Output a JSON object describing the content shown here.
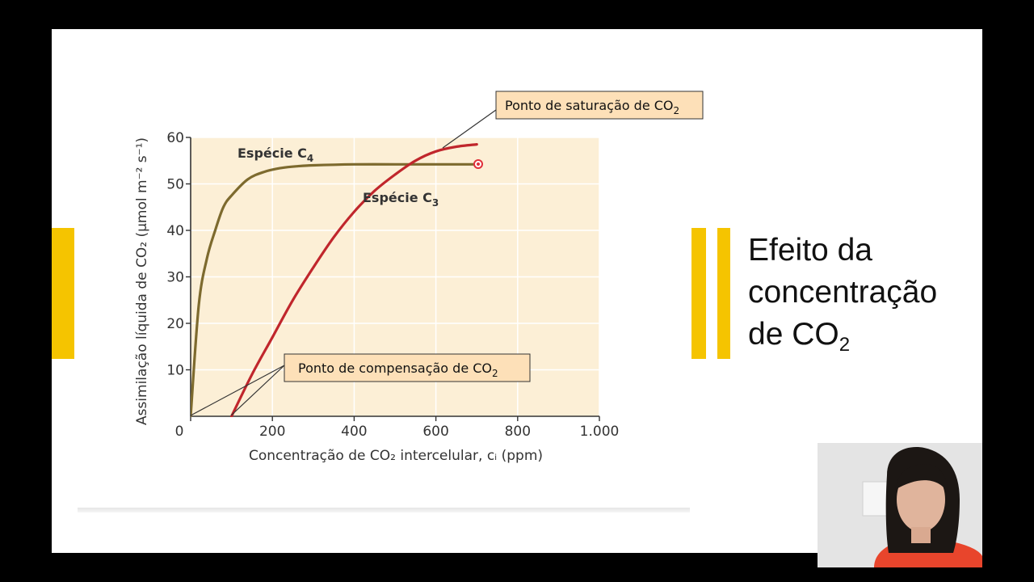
{
  "slide": {
    "title_main": "Efeito da concentração de CO",
    "title_sub": "2"
  },
  "chart_data": {
    "type": "line",
    "xlabel": "Concentração de CO₂ intercelular, cᵢ (ppm)",
    "ylabel": "Assimilação líquida de CO₂ (μmol m⁻² s⁻¹)",
    "xlim": [
      0,
      1000
    ],
    "ylim": [
      0,
      60
    ],
    "x_ticks": [
      0,
      200,
      400,
      600,
      800,
      1000
    ],
    "x_tick_labels": [
      "0",
      "200",
      "400",
      "600",
      "800",
      "1.000"
    ],
    "y_ticks": [
      10,
      20,
      30,
      40,
      50,
      60
    ],
    "y_tick_labels": [
      "10",
      "20",
      "30",
      "40",
      "50",
      "60"
    ],
    "grid": true,
    "series": [
      {
        "name": "Espécie C₄",
        "color": "#7d6a2e",
        "x": [
          0,
          20,
          40,
          60,
          80,
          100,
          140,
          180,
          220,
          260,
          300,
          400,
          500,
          600,
          700
        ],
        "y": [
          0,
          24,
          34,
          40,
          45,
          47.5,
          51,
          52.6,
          53.4,
          53.8,
          54,
          54.2,
          54.2,
          54.2,
          54.2
        ]
      },
      {
        "name": "Espécie C₃",
        "color": "#c0262c",
        "x": [
          100,
          150,
          200,
          250,
          300,
          350,
          400,
          450,
          500,
          550,
          600,
          650,
          700
        ],
        "y": [
          0,
          9,
          17,
          25,
          32,
          38.5,
          44,
          48.5,
          52,
          55,
          57,
          58,
          58.5
        ]
      }
    ],
    "annotations": [
      {
        "text": "Ponto de saturação de CO",
        "sub": "2"
      },
      {
        "text": "Ponto de compensação de CO",
        "sub": "2"
      }
    ],
    "series_labels": [
      {
        "text": "Espécie C",
        "sub": "4"
      },
      {
        "text": "Espécie C",
        "sub": "3"
      }
    ]
  }
}
